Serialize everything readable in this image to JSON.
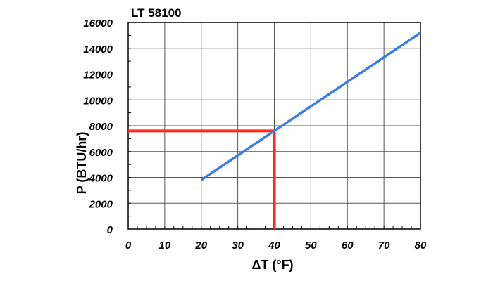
{
  "chart_data": {
    "type": "line",
    "title": "LT 58100",
    "xlabel": "ΔT (°F)",
    "ylabel": "P (BTU/hr)",
    "xlim": [
      0,
      80
    ],
    "ylim": [
      0,
      16000
    ],
    "x_ticks": [
      0,
      10,
      20,
      30,
      40,
      50,
      60,
      70,
      80
    ],
    "y_ticks": [
      0,
      2000,
      4000,
      6000,
      8000,
      10000,
      12000,
      14000,
      16000
    ],
    "grid": true,
    "series": [
      {
        "color": "#3b7de6",
        "x": [
          20,
          80
        ],
        "y": [
          3800,
          15200
        ]
      }
    ],
    "reference_lines": [
      {
        "color": "#ff2a1a",
        "x": [
          0,
          40
        ],
        "y": [
          7600,
          7600
        ]
      },
      {
        "color": "#ff2a1a",
        "x": [
          40,
          40
        ],
        "y": [
          7600,
          0
        ]
      }
    ]
  }
}
